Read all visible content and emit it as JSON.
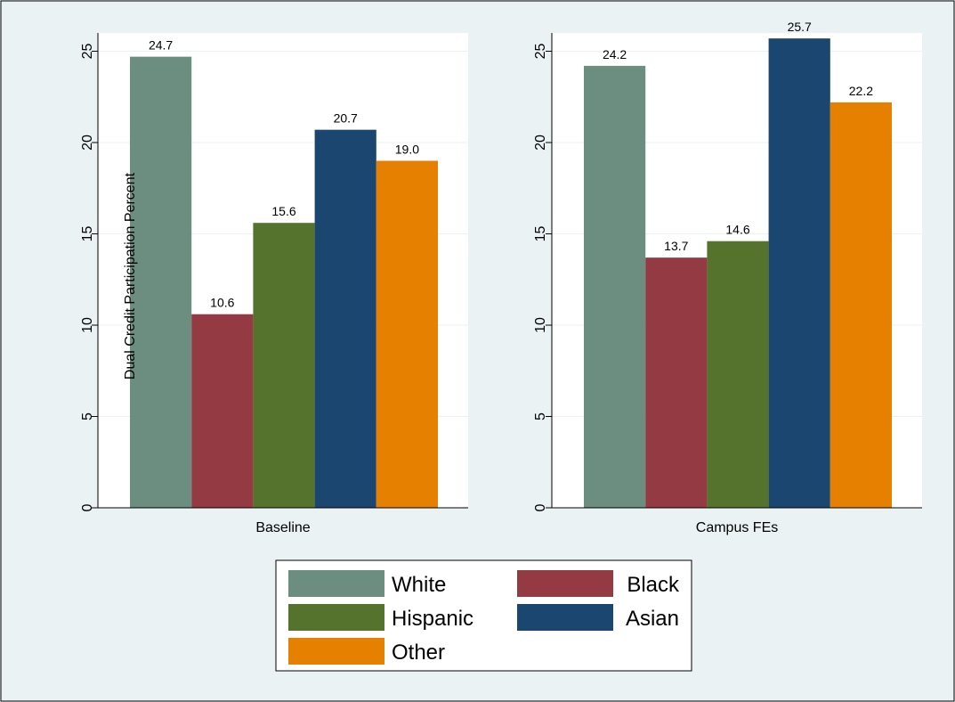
{
  "chart_data": {
    "type": "bar",
    "ylabel": "Dual Credit Participation Percent",
    "ylim": [
      0,
      26
    ],
    "yticks": [
      0,
      5,
      10,
      15,
      20,
      25
    ],
    "grid": true,
    "legend_position": "bottom",
    "legend": [
      "White",
      "Black",
      "Hispanic",
      "Asian",
      "Other"
    ],
    "series_colors": [
      "#6b8e80",
      "#943a42",
      "#56732e",
      "#1b4670",
      "#e68000"
    ],
    "panels": [
      {
        "category": "Baseline",
        "values": [
          24.7,
          10.6,
          15.6,
          20.7,
          19.0
        ],
        "value_labels": [
          "24.7",
          "10.6",
          "15.6",
          "20.7",
          "19.0"
        ]
      },
      {
        "category": "Campus FEs",
        "values": [
          24.2,
          13.7,
          14.6,
          25.7,
          22.2
        ],
        "value_labels": [
          "24.2",
          "13.7",
          "14.6",
          "25.7",
          "22.2"
        ]
      }
    ]
  },
  "colors": {
    "background": "#eaf2f3",
    "plot_background": "#ffffff",
    "grid": "#eaf2f3"
  }
}
